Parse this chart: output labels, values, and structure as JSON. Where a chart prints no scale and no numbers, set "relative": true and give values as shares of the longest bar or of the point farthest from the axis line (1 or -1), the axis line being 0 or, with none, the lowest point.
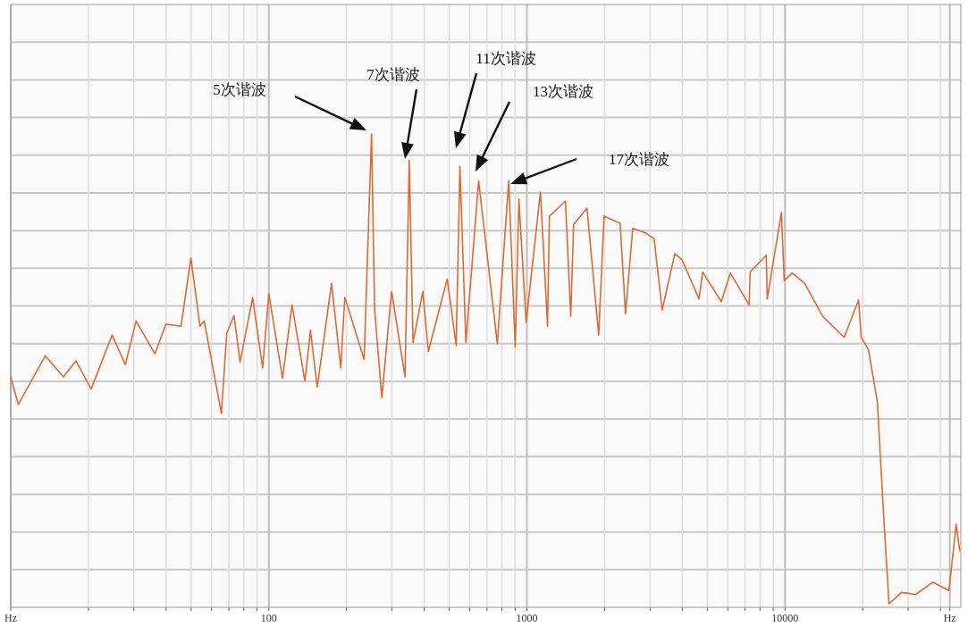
{
  "chart_data": {
    "type": "line",
    "relative": true,
    "log": "x",
    "xlim": [
      10,
      48000
    ],
    "xticks": [
      {
        "value": 10,
        "label": "Hz"
      },
      {
        "value": 20,
        "label": null
      },
      {
        "value": 30,
        "label": null
      },
      {
        "value": 40,
        "label": null
      },
      {
        "value": 50,
        "label": null
      },
      {
        "value": 60,
        "label": null
      },
      {
        "value": 70,
        "label": null
      },
      {
        "value": 80,
        "label": null
      },
      {
        "value": 90,
        "label": null
      },
      100,
      {
        "value": 200,
        "label": null
      },
      {
        "value": 300,
        "label": null
      },
      {
        "value": 400,
        "label": null
      },
      {
        "value": 500,
        "label": null
      },
      {
        "value": 600,
        "label": null
      },
      {
        "value": 700,
        "label": null
      },
      {
        "value": 800,
        "label": null
      },
      {
        "value": 900,
        "label": null
      },
      1000,
      {
        "value": 2000,
        "label": null
      },
      {
        "value": 3000,
        "label": null
      },
      {
        "value": 4000,
        "label": null
      },
      {
        "value": 5000,
        "label": null
      },
      {
        "value": 6000,
        "label": null
      },
      {
        "value": 7000,
        "label": null
      },
      {
        "value": 8000,
        "label": null
      },
      {
        "value": 9000,
        "label": null
      },
      10000,
      {
        "value": 20000,
        "label": null
      },
      {
        "value": 30000,
        "label": null
      },
      {
        "value": 40000,
        "label": null
      },
      {
        "value": 43500,
        "label": "Hz"
      }
    ],
    "grid": true,
    "series": [
      {
        "color": "#dd6a35",
        "x": [
          10,
          10.7,
          13.6,
          16,
          17.9,
          20.5,
          24.7,
          27.8,
          30.6,
          36.2,
          39.9,
          45.7,
          49.9,
          54.1,
          56.2,
          65.5,
          68.7,
          73.3,
          77.4,
          86.6,
          94.6,
          100,
          113,
          123,
          138,
          145,
          154,
          175,
          190,
          197,
          234,
          250,
          257,
          274,
          299,
          337,
          350,
          362,
          395,
          415,
          491,
          532,
          550,
          580,
          650,
          768,
          850,
          901,
          931,
          993,
          1128,
          1202,
          1222,
          1410,
          1479,
          1517,
          1709,
          1897,
          1990,
          2297,
          2410,
          2570,
          2872,
          3111,
          3342,
          3741,
          3990,
          4645,
          4797,
          5665,
          6138,
          7262,
          7324,
          8459,
          8531,
          9685,
          9931,
          10660,
          11920,
          13990,
          16950,
          19280,
          19730,
          21040,
          22800,
          23350,
          24100,
          25290,
          28250,
          32100,
          37410,
          43180,
          46030,
          47540
        ],
        "values": [
          0.483,
          0.424,
          0.528,
          0.483,
          0.517,
          0.457,
          0.572,
          0.509,
          0.602,
          0.532,
          0.595,
          0.591,
          0.736,
          0.591,
          0.602,
          0.405,
          0.576,
          0.613,
          0.515,
          0.652,
          0.502,
          0.66,
          0.48,
          0.636,
          0.474,
          0.582,
          0.461,
          0.682,
          0.502,
          0.652,
          0.52,
          1,
          0.626,
          0.439,
          0.665,
          0.483,
          0.944,
          0.556,
          0.665,
          0.537,
          0.691,
          0.55,
          0.931,
          0.556,
          0.9,
          0.554,
          0.9,
          0.546,
          0.861,
          0.599,
          0.877,
          0.591,
          0.825,
          0.857,
          0.612,
          0.807,
          0.842,
          0.572,
          0.825,
          0.81,
          0.617,
          0.799,
          0.79,
          0.777,
          0.625,
          0.745,
          0.732,
          0.649,
          0.706,
          0.643,
          0.704,
          0.636,
          0.706,
          0.742,
          0.649,
          0.833,
          0.688,
          0.704,
          0.682,
          0.612,
          0.567,
          0.647,
          0.567,
          0.541,
          0.429,
          0.325,
          0.188,
          0,
          0.024,
          0.02,
          0.046,
          0.028,
          0.169,
          0.113
        ]
      }
    ],
    "annotations": [
      "5次谐波",
      "7次谐波",
      "11次谐波",
      "13次谐波",
      "17次谐波"
    ]
  }
}
